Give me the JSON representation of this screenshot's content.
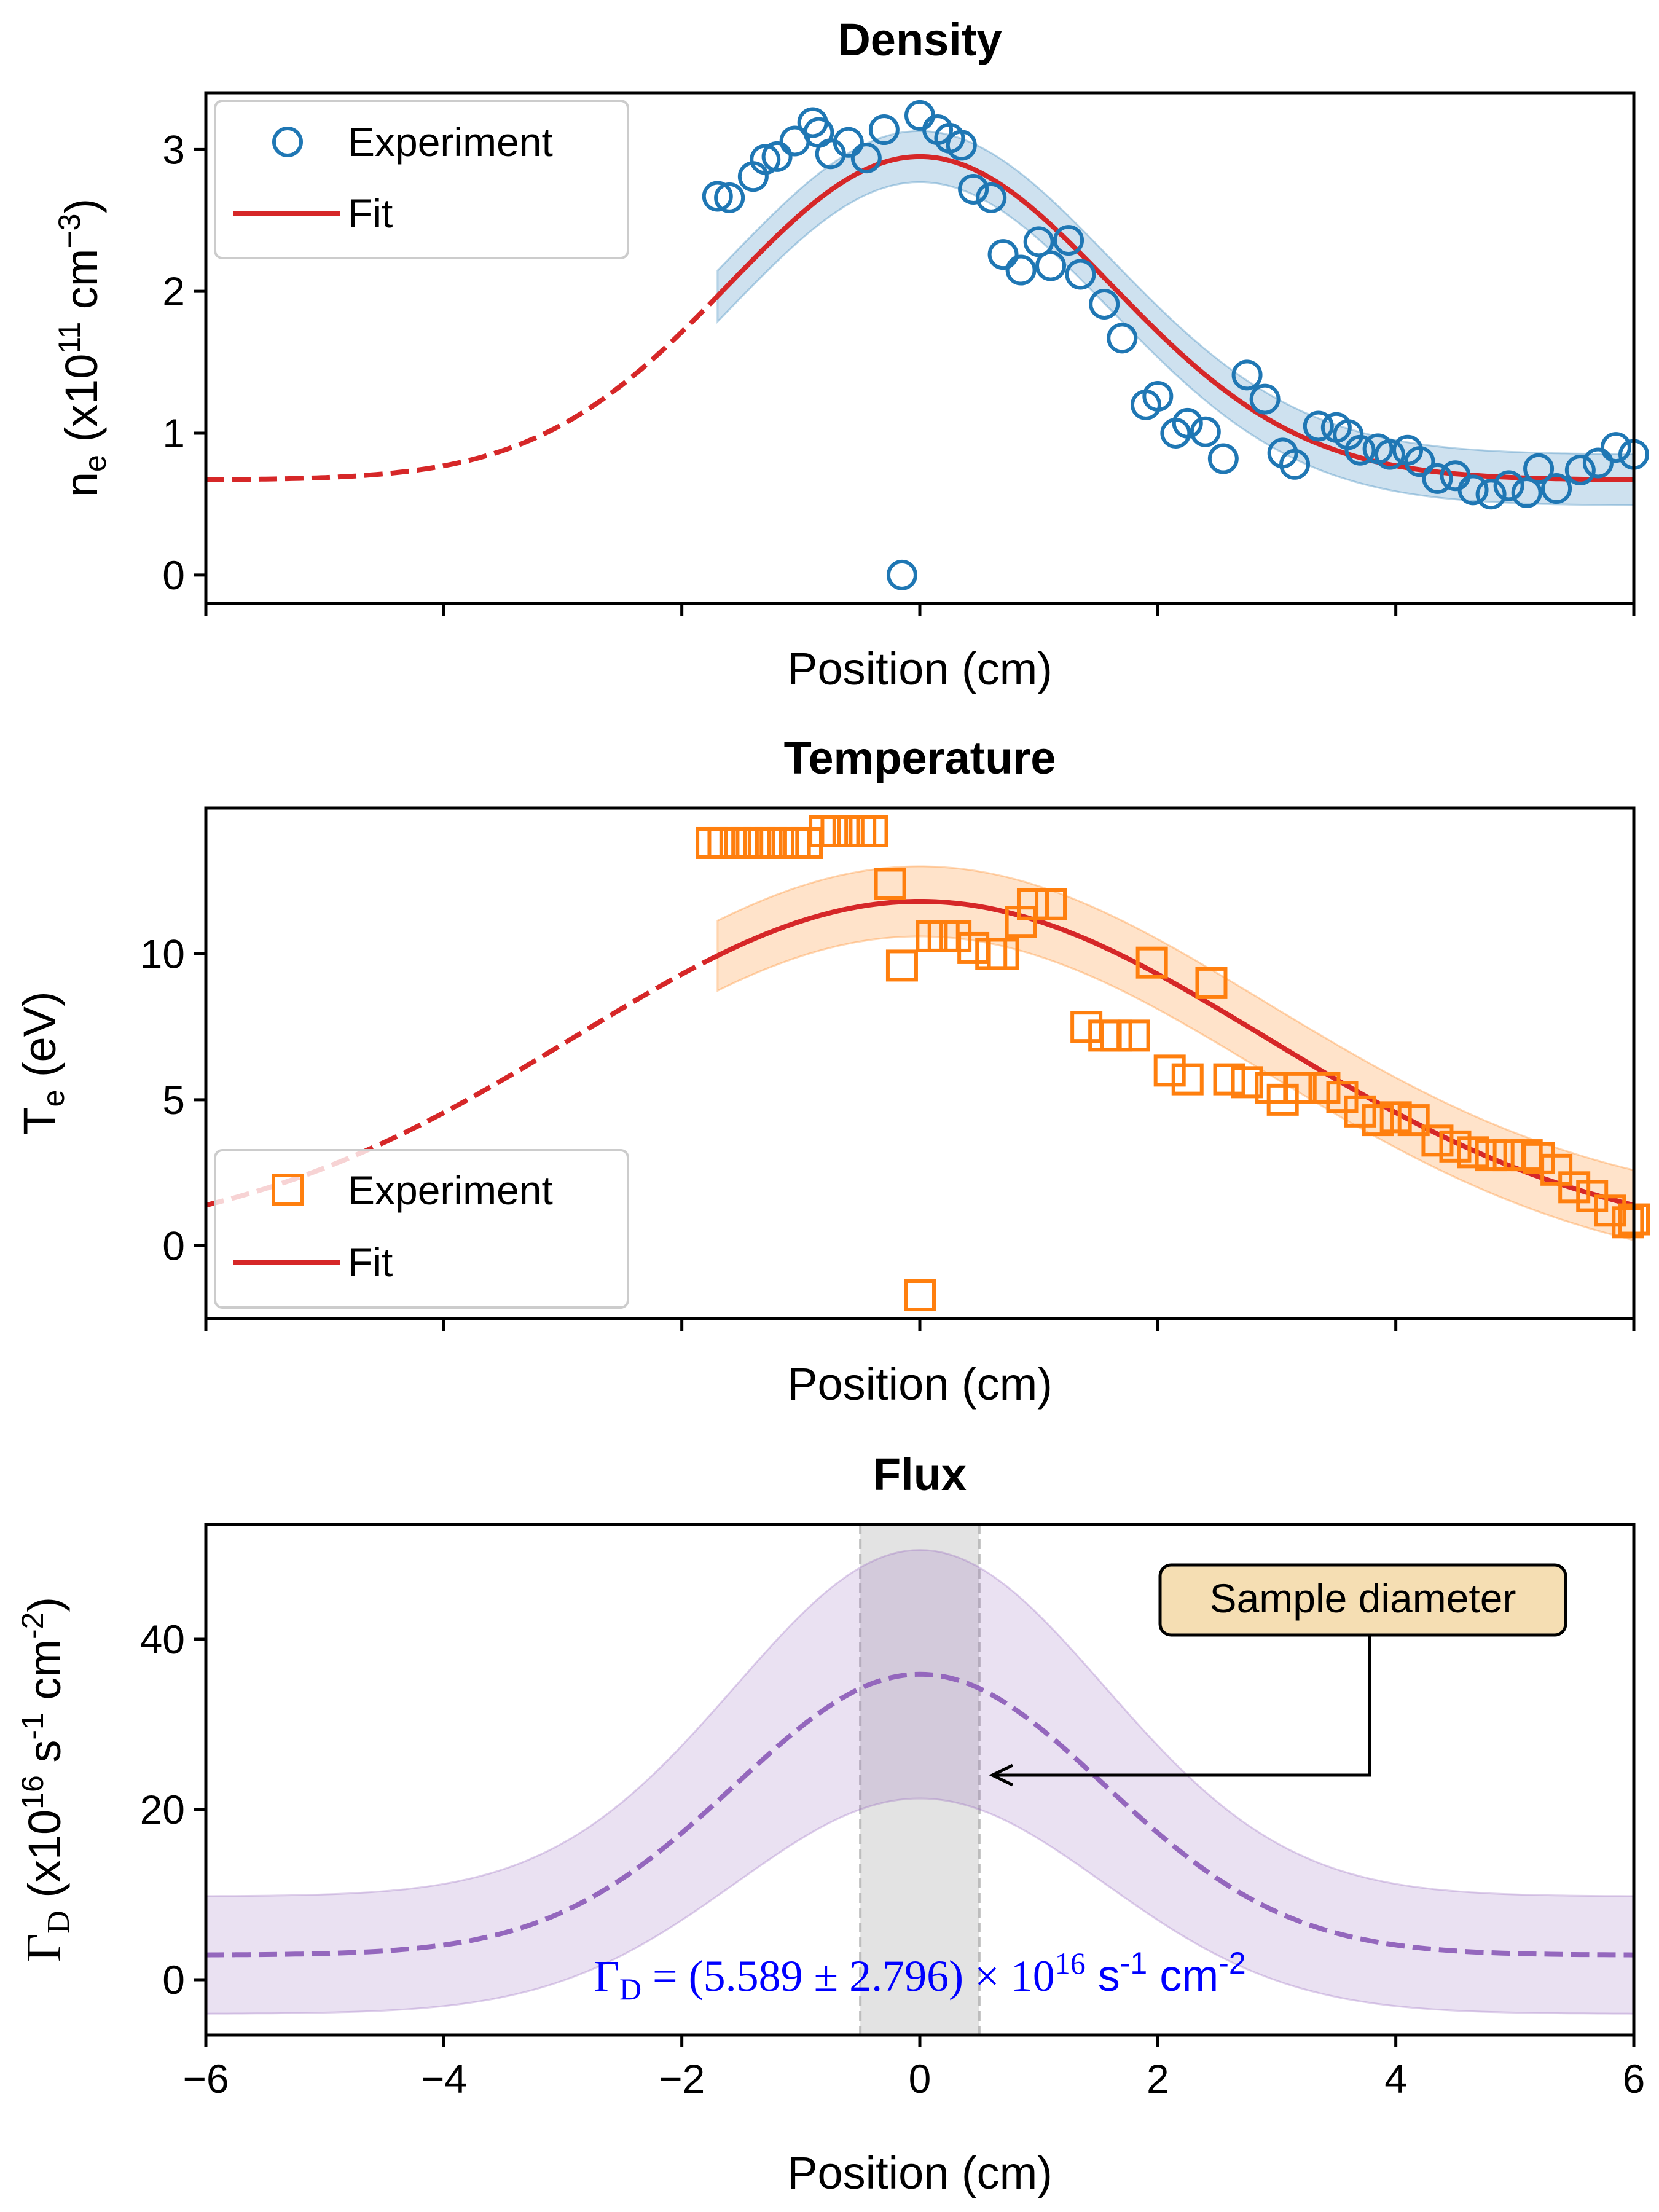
{
  "colors": {
    "density": "#1f77b4",
    "temperature": "#ff7f0e",
    "fit": "#d62728",
    "flux": "#9467bd",
    "annotation_text": "#0000ff",
    "annotation_box": "#f5deb3",
    "sample_band": "#d9d9d9"
  },
  "chart_data": [
    {
      "type": "scatter",
      "title": "Density",
      "xlabel": "Position (cm)",
      "ylabel": {
        "base": "n",
        "sub": "e",
        "text1": " (x10",
        "sup1": "11",
        "text2": " cm",
        "sup2": "−3",
        "text3": ")"
      },
      "xlim": [
        -6,
        6
      ],
      "ylim": [
        -0.2,
        3.4
      ],
      "yticks": [
        0,
        1,
        2,
        3
      ],
      "ytick_labels": [
        "0",
        "1",
        "2",
        "3"
      ],
      "legend": {
        "placement": "upper-left",
        "entries": [
          "Experiment",
          "Fit"
        ]
      },
      "series": [
        {
          "name": "Experiment",
          "marker": "circle",
          "x": [
            -1.7,
            -1.6,
            -1.4,
            -1.3,
            -1.2,
            -1.05,
            -0.9,
            -0.85,
            -0.75,
            -0.6,
            -0.45,
            -0.3,
            -0.15,
            0.0,
            0.15,
            0.25,
            0.35,
            0.45,
            0.6,
            0.7,
            0.85,
            1.0,
            1.1,
            1.25,
            1.35,
            1.55,
            1.7,
            1.9,
            2.0,
            2.15,
            2.25,
            2.4,
            2.55,
            2.75,
            2.9,
            3.05,
            3.15,
            3.35,
            3.5,
            3.6,
            3.7,
            3.85,
            3.95,
            4.1,
            4.2,
            4.35,
            4.5,
            4.65,
            4.8,
            4.95,
            5.1,
            5.2,
            5.35,
            5.55,
            5.7,
            5.85,
            6.0
          ],
          "y": [
            2.67,
            2.66,
            2.81,
            2.93,
            2.95,
            3.06,
            3.19,
            3.12,
            2.97,
            3.05,
            2.94,
            3.14,
            0.0,
            3.24,
            3.14,
            3.08,
            3.03,
            2.72,
            2.66,
            2.26,
            2.15,
            2.35,
            2.18,
            2.36,
            2.12,
            1.91,
            1.67,
            1.2,
            1.26,
            1.0,
            1.07,
            1.01,
            0.82,
            1.41,
            1.24,
            0.86,
            0.78,
            1.05,
            1.04,
            0.99,
            0.88,
            0.89,
            0.85,
            0.88,
            0.8,
            0.68,
            0.7,
            0.6,
            0.57,
            0.63,
            0.58,
            0.75,
            0.61,
            0.74,
            0.79,
            0.9,
            0.85
          ]
        },
        {
          "name": "Fit",
          "style": "solid",
          "x_solid_range": [
            -1.7,
            6.0
          ],
          "x_dashed_range": [
            -6.0,
            -1.7
          ],
          "model": {
            "amplitude": 2.28,
            "center": 0.0,
            "sigma": 1.6,
            "offset": 0.67
          },
          "band_halfwidth": 0.18
        }
      ]
    },
    {
      "type": "scatter",
      "title": "Temperature",
      "xlabel": "Position (cm)",
      "ylabel": {
        "base": "T",
        "sub": "e",
        "text1": " (eV)"
      },
      "xlim": [
        -6,
        6
      ],
      "ylim": [
        -2.5,
        15.0
      ],
      "yticks": [
        0,
        5,
        10
      ],
      "ytick_labels": [
        "0",
        "5",
        "10"
      ],
      "legend": {
        "placement": "lower-left",
        "entries": [
          "Experiment",
          "Fit"
        ]
      },
      "series": [
        {
          "name": "Experiment",
          "marker": "square",
          "x": [
            -1.75,
            -1.65,
            -1.55,
            -1.45,
            -1.35,
            -1.25,
            -1.15,
            -1.05,
            -0.95,
            -0.8,
            -0.7,
            -0.6,
            -0.5,
            -0.4,
            -0.25,
            -0.15,
            0.0,
            0.1,
            0.2,
            0.3,
            0.45,
            0.6,
            0.7,
            0.85,
            0.95,
            1.1,
            1.4,
            1.55,
            1.65,
            1.8,
            1.95,
            2.1,
            2.25,
            2.45,
            2.6,
            2.75,
            2.95,
            3.05,
            3.2,
            3.4,
            3.55,
            3.7,
            3.85,
            4.0,
            4.15,
            4.35,
            4.5,
            4.65,
            4.8,
            4.95,
            5.1,
            5.2,
            5.35,
            5.5,
            5.65,
            5.8,
            5.95,
            6.0
          ],
          "y": [
            13.8,
            13.8,
            13.8,
            13.8,
            13.8,
            13.8,
            13.8,
            13.8,
            13.8,
            14.2,
            14.2,
            14.2,
            14.2,
            14.2,
            12.4,
            9.6,
            -1.7,
            10.6,
            10.6,
            10.6,
            10.2,
            10.0,
            10.0,
            11.1,
            11.7,
            11.7,
            7.5,
            7.2,
            7.2,
            7.2,
            9.7,
            6.0,
            5.7,
            9.0,
            5.7,
            5.6,
            5.4,
            5.0,
            5.4,
            5.4,
            5.1,
            4.6,
            4.3,
            4.4,
            4.3,
            3.6,
            3.4,
            3.2,
            3.1,
            3.1,
            3.1,
            3.0,
            2.6,
            2.0,
            1.7,
            1.2,
            0.8,
            0.9
          ]
        },
        {
          "name": "Fit",
          "style": "solid",
          "x_solid_range": [
            -1.7,
            6.0
          ],
          "x_dashed_range": [
            -6.0,
            -1.7
          ],
          "model": {
            "amplitude": 11.8,
            "center": 0.0,
            "sigma": 2.9,
            "offset": 0.0
          },
          "band_halfwidth": 1.2
        }
      ]
    },
    {
      "type": "line",
      "title": "Flux",
      "xlabel": "Position (cm)",
      "ylabel": {
        "base": "Γ",
        "sub": "D",
        "text1": " (x10",
        "sup1": "16",
        "text2": " s",
        "sup2": "-1",
        "text3": " cm",
        "sup3": "-2",
        "text4": ")"
      },
      "xlim": [
        -6,
        6
      ],
      "ylim": [
        -6.5,
        53.5
      ],
      "xticks": [
        -6,
        -4,
        -2,
        0,
        2,
        4,
        6
      ],
      "xtick_labels": [
        "−6",
        "−4",
        "−2",
        "0",
        "2",
        "4",
        "6"
      ],
      "yticks": [
        0,
        20,
        40
      ],
      "ytick_labels": [
        "0",
        "20",
        "40"
      ],
      "series": [
        {
          "style": "dashed",
          "x_range": [
            -6.0,
            6.0
          ],
          "model": {
            "amplitude": 33.0,
            "center": 0.0,
            "sigma": 1.55,
            "offset": 2.9
          },
          "band_lower": {
            "amplitude": 25.3,
            "offset": -4.0
          },
          "band_upper": {
            "amplitude": 40.7,
            "offset": 9.8
          }
        }
      ],
      "sample_region": [
        -0.5,
        0.5
      ],
      "annotation": {
        "label": "Sample diameter",
        "arrow_target": [
          0.6,
          23.5
        ]
      },
      "formula": {
        "lhs": "Γ",
        "lhs_sub": "D",
        "eq": " = (5.589 ± 2.796) × 10",
        "exp": "16",
        "unit1": " s",
        "unit1_sup": "-1",
        "unit2": " cm",
        "unit2_sup": "-2"
      }
    }
  ]
}
